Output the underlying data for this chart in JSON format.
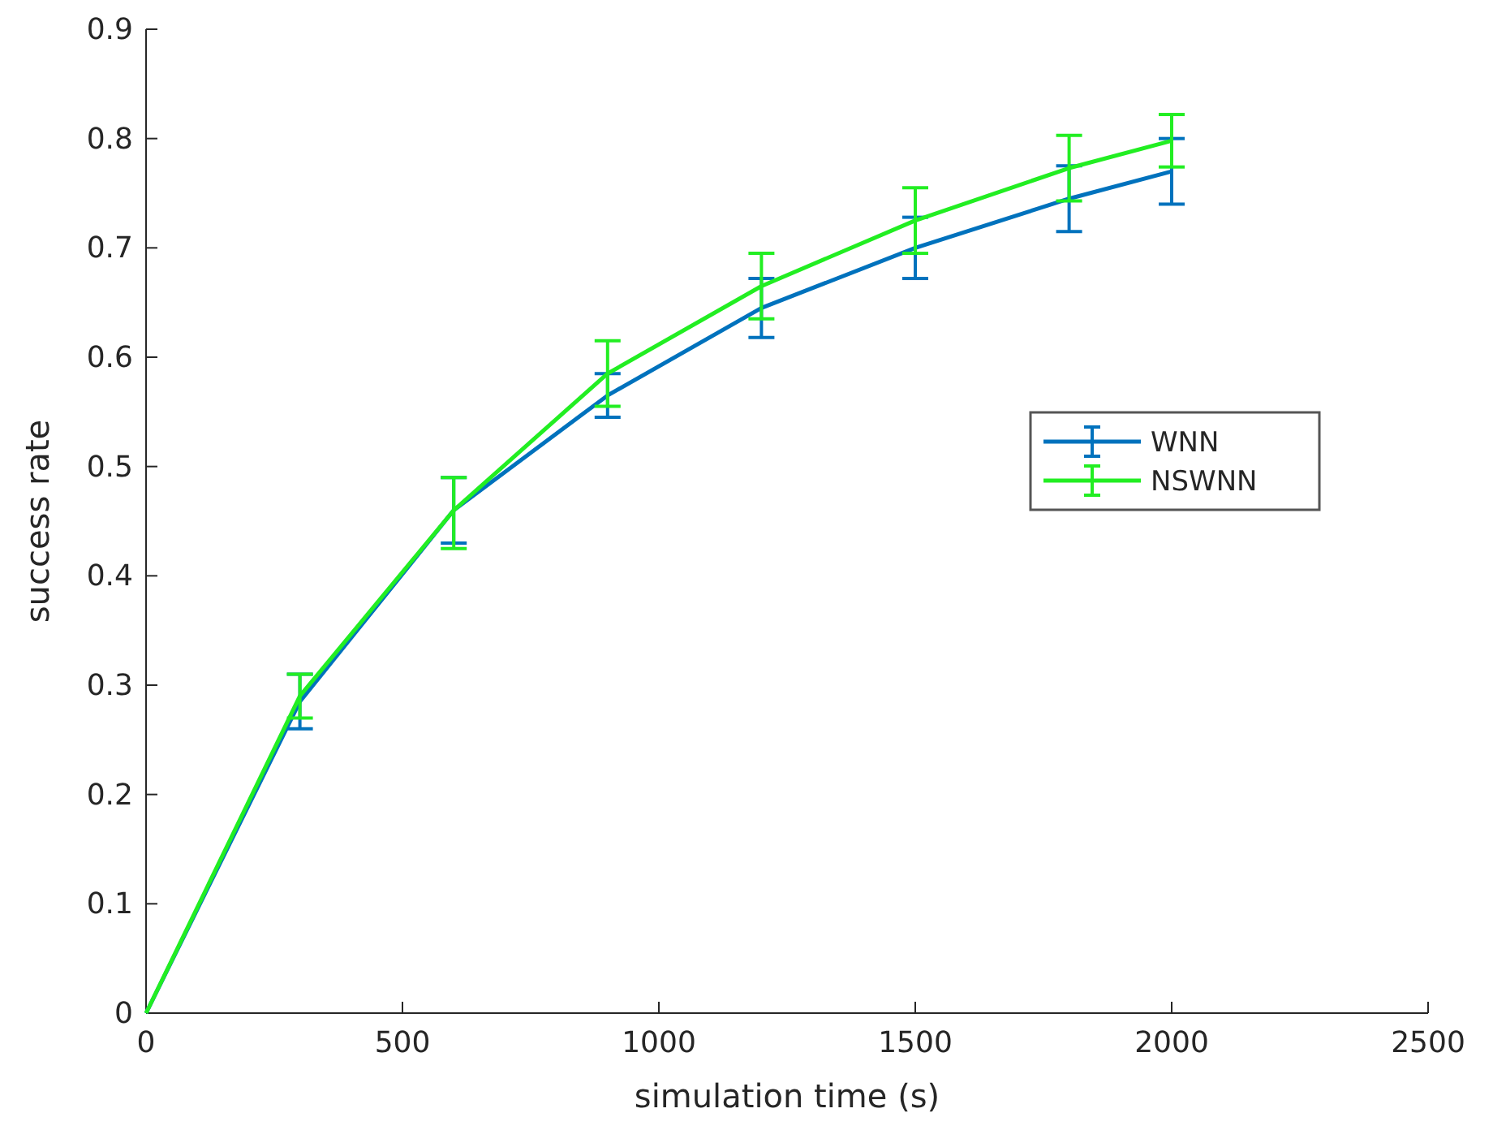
{
  "chart_data": {
    "type": "line",
    "xlabel": "simulation time (s)",
    "ylabel": "success rate",
    "x": [
      0,
      300,
      600,
      900,
      1200,
      1500,
      1800,
      2000
    ],
    "series": [
      {
        "name": "WNN",
        "color": "#0072bd",
        "values": [
          0,
          0.285,
          0.46,
          0.565,
          0.645,
          0.7,
          0.745,
          0.77
        ],
        "errors": [
          null,
          0.025,
          0.03,
          0.02,
          0.027,
          0.028,
          0.03,
          0.03
        ]
      },
      {
        "name": "NSWNN",
        "color": "#22ee22",
        "values": [
          0,
          0.29,
          0.46,
          0.585,
          0.665,
          0.725,
          0.773,
          0.798
        ],
        "errors": [
          null,
          0.02,
          [
            0.425,
            0.49
          ],
          0.03,
          0.03,
          0.03,
          0.03,
          0.024
        ]
      }
    ],
    "xlim": [
      0,
      2500
    ],
    "xticks": [
      0,
      500,
      1000,
      1500,
      2000,
      2500
    ],
    "ylim": [
      0,
      0.9
    ],
    "yticks": [
      0,
      0.1,
      0.2,
      0.3,
      0.4,
      0.5,
      0.6,
      0.7,
      0.8,
      0.9
    ],
    "grid": false,
    "legend": "right",
    "marker": "none",
    "line_style": "solid"
  }
}
